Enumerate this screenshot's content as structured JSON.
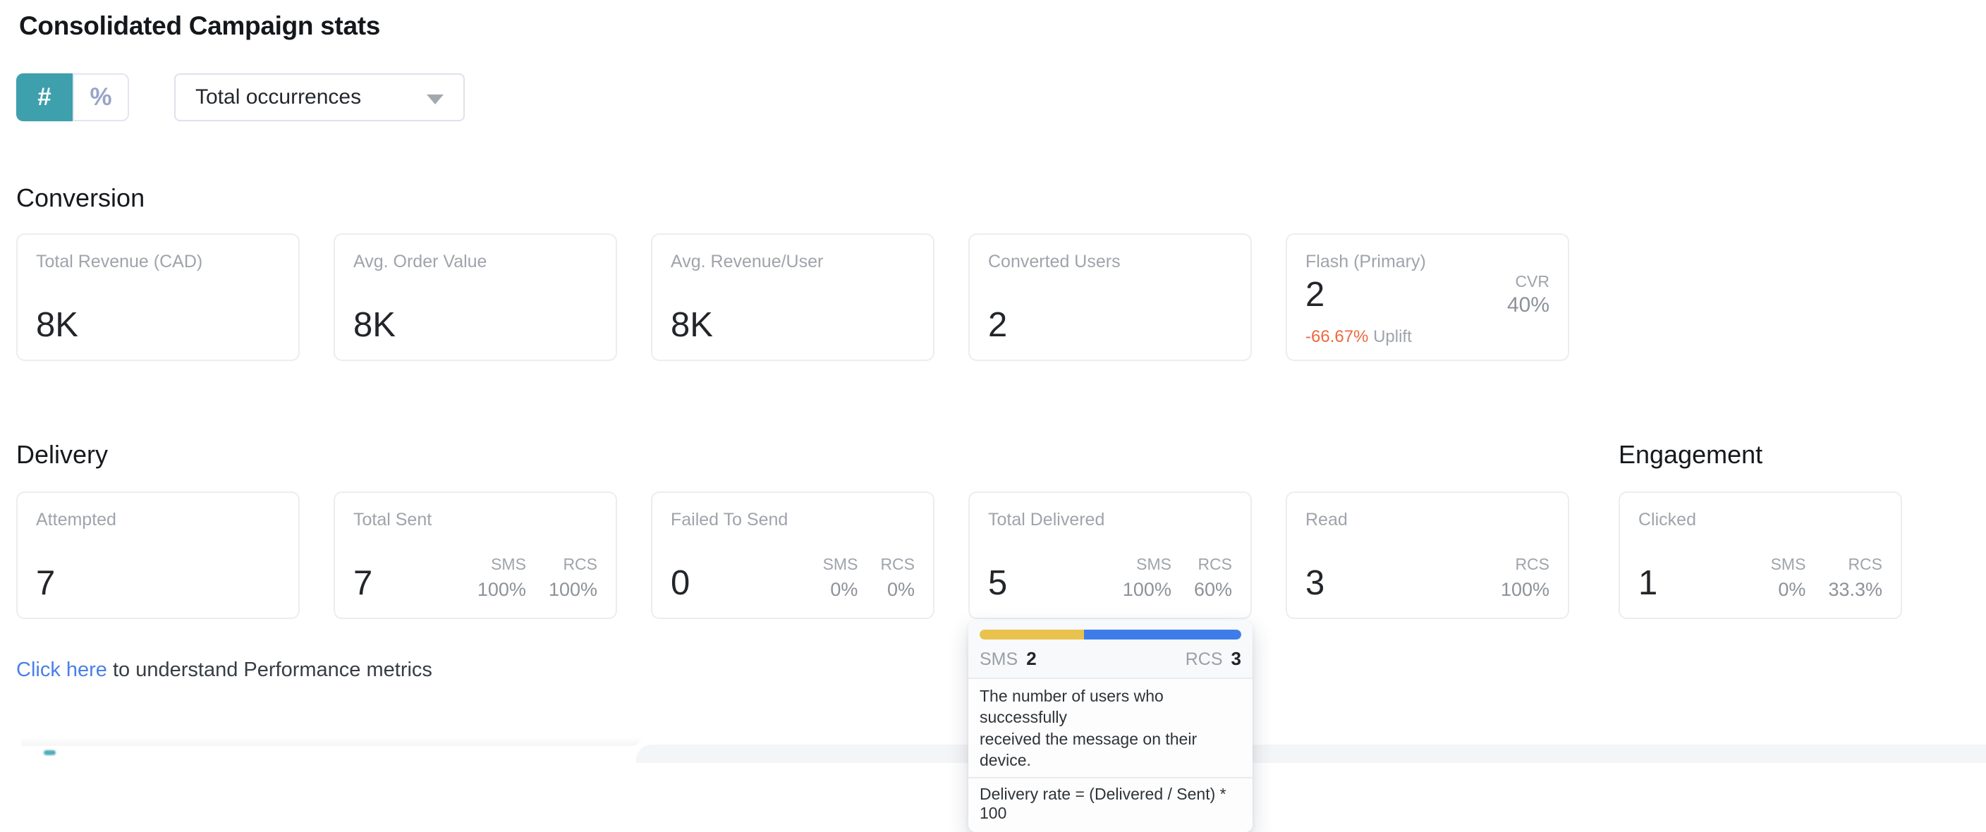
{
  "page": {
    "title": "Consolidated Campaign stats"
  },
  "controls": {
    "toggle": {
      "count_label": "#",
      "percent_label": "%"
    },
    "metric_dropdown": {
      "value": "Total occurrences"
    }
  },
  "labels": {
    "sms": "SMS",
    "rcs": "RCS"
  },
  "conversion": {
    "heading": "Conversion",
    "cards": [
      {
        "label": "Total Revenue (CAD)",
        "value": "8K"
      },
      {
        "label": "Avg. Order Value",
        "value": "8K"
      },
      {
        "label": "Avg. Revenue/User",
        "value": "8K"
      },
      {
        "label": "Converted Users",
        "value": "2"
      },
      {
        "label": "Flash (Primary)",
        "value": "2",
        "cvr_label": "CVR",
        "cvr_value": "40%",
        "uplift_value": "-66.67%",
        "uplift_label": "Uplift"
      }
    ]
  },
  "delivery": {
    "heading": "Delivery",
    "cards": [
      {
        "label": "Attempted",
        "value": "7"
      },
      {
        "label": "Total Sent",
        "value": "7",
        "sms": "100%",
        "rcs": "100%"
      },
      {
        "label": "Failed To Send",
        "value": "0",
        "sms": "0%",
        "rcs": "0%"
      },
      {
        "label": "Total Delivered",
        "value": "5",
        "sms": "100%",
        "rcs": "60%"
      },
      {
        "label": "Read",
        "value": "3",
        "rcs": "100%"
      }
    ]
  },
  "engagement": {
    "heading": "Engagement",
    "cards": [
      {
        "label": "Clicked",
        "value": "1",
        "sms": "0%",
        "rcs": "33.3%"
      }
    ]
  },
  "tooltip": {
    "bar": {
      "sms_width": "40%",
      "rcs_width": "60%"
    },
    "sms_value": "2",
    "rcs_value": "3",
    "description": "The number of users who successfully\nreceived the message on their device.",
    "formula": "Delivery rate = (Delivered / Sent) * 100"
  },
  "footer": {
    "link_text": "Click here",
    "rest_text": " to understand Performance metrics"
  },
  "colors": {
    "accent_teal": "#3E9FAD",
    "toggle_percent_gray": "#99A4C8",
    "card_border": "#EBEDF1",
    "label_gray": "#9FA4AB",
    "value_dark": "#222529",
    "mini_gray": "#8D9298",
    "uplift_orange": "#EC6A3F",
    "link_blue": "#4A80E8",
    "bar_sms_yellow": "#E8C24D",
    "bar_rcs_blue": "#3E7DE9"
  }
}
